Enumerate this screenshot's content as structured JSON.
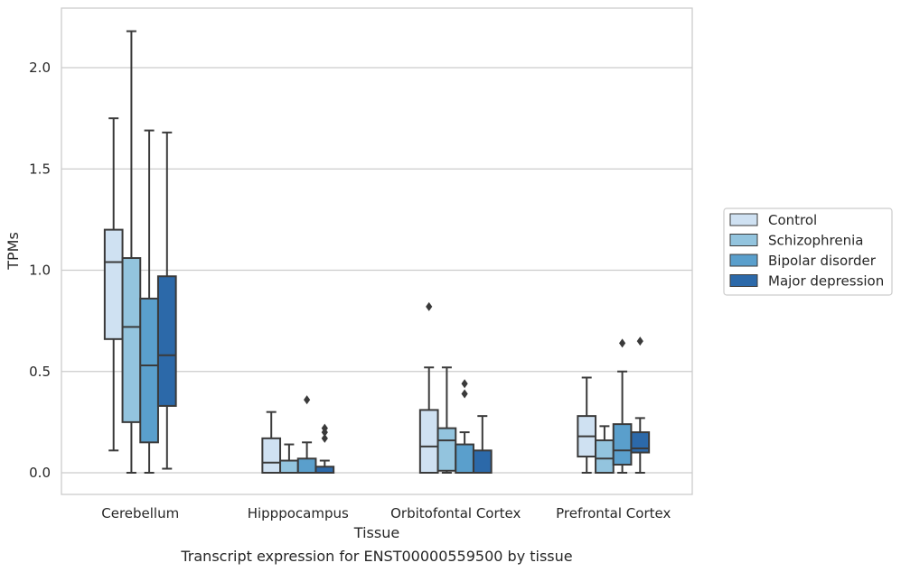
{
  "chart_data": {
    "type": "box",
    "title": "",
    "caption": "Transcript expression for ENST00000559500 by tissue",
    "xlabel": "Tissue",
    "ylabel": "TPMs",
    "ylim": [
      -0.1,
      2.29
    ],
    "yticks": [
      0.0,
      0.5,
      1.0,
      1.5,
      2.0
    ],
    "ytick_labels": [
      "0.0",
      "0.5",
      "1.0",
      "1.5",
      "2.0"
    ],
    "grid": "horizontal",
    "legend_position": "right",
    "categories": [
      "Cerebellum",
      "Hipppocampus",
      "Orbitofontal Cortex",
      "Prefrontal Cortex"
    ],
    "series": [
      {
        "name": "Control",
        "color": "#cfe1f2",
        "boxes": [
          {
            "whislo": 0.11,
            "q1": 0.66,
            "med": 1.04,
            "q3": 1.2,
            "whishi": 1.75,
            "fliers": []
          },
          {
            "whislo": 0.0,
            "q1": 0.0,
            "med": 0.05,
            "q3": 0.17,
            "whishi": 0.3,
            "fliers": []
          },
          {
            "whislo": 0.0,
            "q1": 0.0,
            "med": 0.13,
            "q3": 0.31,
            "whishi": 0.52,
            "fliers": [
              0.82
            ]
          },
          {
            "whislo": 0.0,
            "q1": 0.08,
            "med": 0.18,
            "q3": 0.28,
            "whishi": 0.47,
            "fliers": []
          }
        ]
      },
      {
        "name": "Schizophrenia",
        "color": "#93c4de",
        "boxes": [
          {
            "whislo": 0.0,
            "q1": 0.25,
            "med": 0.72,
            "q3": 1.06,
            "whishi": 2.18,
            "fliers": []
          },
          {
            "whislo": 0.0,
            "q1": 0.0,
            "med": 0.0,
            "q3": 0.06,
            "whishi": 0.14,
            "fliers": []
          },
          {
            "whislo": 0.0,
            "q1": 0.01,
            "med": 0.16,
            "q3": 0.22,
            "whishi": 0.52,
            "fliers": []
          },
          {
            "whislo": 0.0,
            "q1": 0.0,
            "med": 0.07,
            "q3": 0.16,
            "whishi": 0.23,
            "fliers": []
          }
        ]
      },
      {
        "name": "Bipolar disorder",
        "color": "#5a9fcc",
        "boxes": [
          {
            "whislo": 0.0,
            "q1": 0.15,
            "med": 0.53,
            "q3": 0.86,
            "whishi": 1.69,
            "fliers": []
          },
          {
            "whislo": 0.0,
            "q1": 0.0,
            "med": 0.0,
            "q3": 0.07,
            "whishi": 0.15,
            "fliers": [
              0.36
            ]
          },
          {
            "whislo": 0.0,
            "q1": 0.0,
            "med": 0.0,
            "q3": 0.14,
            "whishi": 0.2,
            "fliers": [
              0.39,
              0.44
            ]
          },
          {
            "whislo": 0.0,
            "q1": 0.04,
            "med": 0.11,
            "q3": 0.24,
            "whishi": 0.5,
            "fliers": [
              0.64
            ]
          }
        ]
      },
      {
        "name": "Major depression",
        "color": "#2c69a9",
        "boxes": [
          {
            "whislo": 0.02,
            "q1": 0.33,
            "med": 0.58,
            "q3": 0.97,
            "whishi": 1.68,
            "fliers": []
          },
          {
            "whislo": 0.0,
            "q1": 0.0,
            "med": 0.0,
            "q3": 0.03,
            "whishi": 0.06,
            "fliers": [
              0.17,
              0.2,
              0.22
            ]
          },
          {
            "whislo": 0.0,
            "q1": 0.0,
            "med": 0.0,
            "q3": 0.11,
            "whishi": 0.28,
            "fliers": []
          },
          {
            "whislo": 0.0,
            "q1": 0.1,
            "med": 0.12,
            "q3": 0.2,
            "whishi": 0.27,
            "fliers": [
              0.65
            ]
          }
        ]
      }
    ]
  }
}
